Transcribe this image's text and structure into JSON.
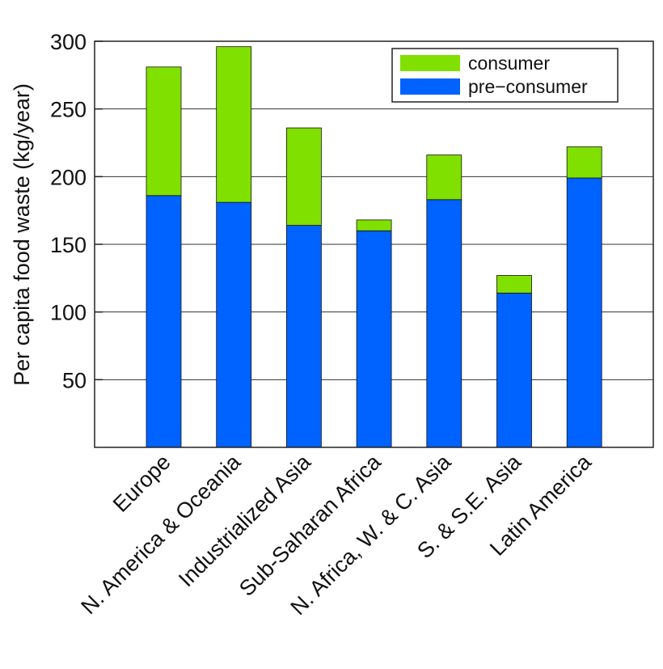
{
  "chart_data": {
    "type": "bar",
    "stacked": true,
    "title": "",
    "xlabel": "",
    "ylabel": "Per capita food waste (kg/year)",
    "ylim": [
      0,
      300
    ],
    "yticks": [
      50,
      100,
      150,
      200,
      250,
      300
    ],
    "grid": true,
    "legend_position": "top-right",
    "categories": [
      "Europe",
      "N. America & Oceania",
      "Industrialized Asia",
      "Sub-Saharan Africa",
      "N. Africa, W. & C. Asia",
      "S. & S.E. Asia",
      "Latin America"
    ],
    "series": [
      {
        "name": "pre−consumer",
        "color": "#0062ff",
        "values": [
          186,
          181,
          164,
          160,
          183,
          114,
          199
        ]
      },
      {
        "name": "consumer",
        "color": "#80e000",
        "values": [
          95,
          115,
          72,
          8,
          33,
          13,
          23
        ]
      }
    ],
    "legend_order": [
      "consumer",
      "pre−consumer"
    ]
  }
}
